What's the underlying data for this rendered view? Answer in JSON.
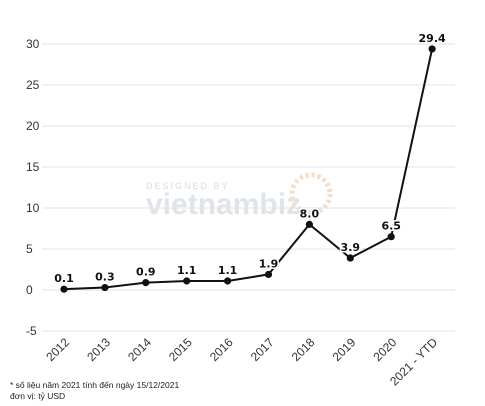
{
  "chart_data": {
    "type": "line",
    "title": "",
    "xlabel": "",
    "ylabel": "",
    "categories": [
      "2012",
      "2013",
      "2014",
      "2015",
      "2016",
      "2017",
      "2018",
      "2019",
      "2020",
      "2021 - YTD"
    ],
    "series": [
      {
        "values": [
          0.1,
          0.3,
          0.9,
          1.1,
          1.1,
          1.9,
          8.0,
          3.9,
          6.5,
          29.4
        ],
        "labels": [
          "0.1",
          "0.3",
          "0.9",
          "1.1",
          "1.1",
          "1.9",
          "8.0",
          "3.9",
          "6.5",
          "29.4"
        ]
      }
    ],
    "ylim": [
      -5,
      30
    ],
    "yticks": [
      "30",
      "25",
      "20",
      "15",
      "10",
      "5",
      "0",
      "-5"
    ],
    "grid": true,
    "line_color": "#111111"
  },
  "watermark": {
    "top": "DESIGNED BY",
    "brand": "vietnambiz"
  },
  "notes": {
    "line1": "* số liệu năm 2021 tính đến ngày 15/12/2021",
    "line2": "đơn vị: tỷ USD"
  }
}
